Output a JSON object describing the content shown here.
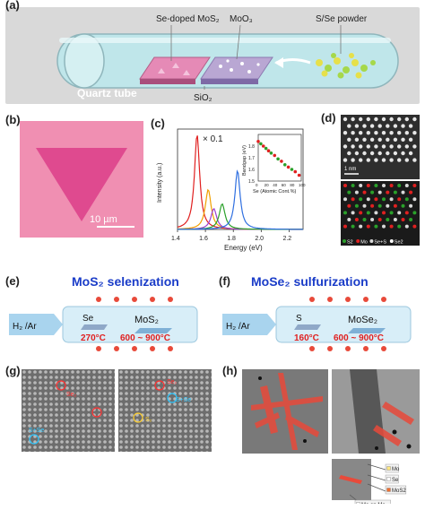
{
  "panels": {
    "a": {
      "label": "(a)",
      "labels": {
        "se_doped": "Se-doped MoS₂",
        "moo3": "MoO₃",
        "powder": "S/Se powder",
        "tube": "Quartz tube",
        "substrate": "SiO₂"
      },
      "colors": {
        "tube": "#bfe6ea",
        "pink": "#e58ab6",
        "substrate": "#b9a7d3"
      }
    },
    "b": {
      "label": "(b)",
      "scale_bar": "10 µm",
      "colors": {
        "background": "#f08fb2",
        "triangle": "#df4a8f"
      }
    },
    "c": {
      "label": "(c)",
      "annotation": "× 0.1",
      "chart_data": [
        {
          "type": "line",
          "xlabel": "Energy (eV)",
          "ylabel": "Intensity (a.u.)",
          "xlim": [
            1.4,
            2.3
          ],
          "xticks": [
            "1.4",
            "1.6",
            "1.8",
            "2.0",
            "2.2"
          ],
          "series": [
            {
              "color": "#e02020",
              "center": 1.54,
              "height": 1.0,
              "width": 0.045
            },
            {
              "color": "#f0a000",
              "center": 1.62,
              "height": 0.42,
              "width": 0.05
            },
            {
              "color": "#9b3fd0",
              "center": 1.66,
              "height": 0.22,
              "width": 0.05
            },
            {
              "color": "#2aa02a",
              "center": 1.72,
              "height": 0.27,
              "width": 0.05
            },
            {
              "color": "#2f6fe0",
              "center": 1.83,
              "height": 0.62,
              "width": 0.045
            }
          ]
        },
        {
          "type": "scatter",
          "xlabel": "Se (Atomic Cont.%)",
          "ylabel": "Bandgap (eV)",
          "xlim": [
            0,
            100
          ],
          "ylim": [
            1.5,
            1.9
          ],
          "xticks": [
            "0",
            "20",
            "40",
            "60",
            "80",
            "100"
          ],
          "yticks": [
            "1.5",
            "1.6",
            "1.7",
            "1.8"
          ],
          "points": [
            {
              "x": 0,
              "y": 1.84,
              "color": "#e02020"
            },
            {
              "x": 6,
              "y": 1.82,
              "color": "#2aa02a"
            },
            {
              "x": 12,
              "y": 1.8,
              "color": "#e02020"
            },
            {
              "x": 18,
              "y": 1.78,
              "color": "#2aa02a"
            },
            {
              "x": 24,
              "y": 1.76,
              "color": "#e02020"
            },
            {
              "x": 30,
              "y": 1.74,
              "color": "#2aa02a"
            },
            {
              "x": 38,
              "y": 1.72,
              "color": "#e02020"
            },
            {
              "x": 46,
              "y": 1.69,
              "color": "#2aa02a"
            },
            {
              "x": 54,
              "y": 1.67,
              "color": "#e02020"
            },
            {
              "x": 62,
              "y": 1.64,
              "color": "#2aa02a"
            },
            {
              "x": 70,
              "y": 1.62,
              "color": "#e02020"
            },
            {
              "x": 78,
              "y": 1.6,
              "color": "#2aa02a"
            },
            {
              "x": 86,
              "y": 1.58,
              "color": "#e02020"
            },
            {
              "x": 95,
              "y": 1.55,
              "color": "#e02020"
            }
          ]
        }
      ]
    },
    "d": {
      "label": "(d)",
      "scale_bar": "1 nm",
      "legend": [
        {
          "text": "S2",
          "color": "#2aa02a"
        },
        {
          "text": "Mo",
          "color": "#e02020"
        },
        {
          "text": "Se+S",
          "color": "#d8d8d8"
        },
        {
          "text": "Se2",
          "color": "#ffffff"
        }
      ]
    },
    "e": {
      "label": "(e)",
      "title": "MoS₂  selenization",
      "gas": "H₂ /Ar",
      "source": "Se",
      "target": "MoS₂",
      "temp_source": "270°C",
      "temp_furnace": "600 ~ 900°C"
    },
    "f": {
      "label": "(f)",
      "title": "MoSe₂  sulfurization",
      "gas": "H₂ /Ar",
      "source": "S",
      "target": "MoSe₂",
      "temp_source": "160°C",
      "temp_furnace": "600 ~ 900°C"
    },
    "g": {
      "label": "(g)",
      "left_annotations": [
        "Se₂",
        "S+Se"
      ],
      "right_annotations": [
        "Se₂",
        "S+Se",
        "S₂"
      ]
    },
    "h": {
      "label": "(h)",
      "legend": [
        {
          "text": "Mo",
          "color": "#ffe680"
        },
        {
          "text": "Se",
          "color": "#ffffff"
        },
        {
          "text": "MoS2",
          "color": "#f07030"
        },
        {
          "text": "Mo on Mo",
          "color": "#ffffff"
        }
      ]
    }
  }
}
